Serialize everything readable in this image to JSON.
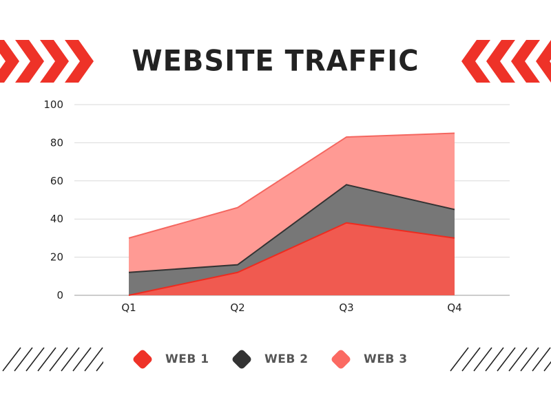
{
  "title": "WEBSITE TRAFFIC",
  "chart_data": {
    "type": "area",
    "stacked": true,
    "categories": [
      "Q1",
      "Q2",
      "Q3",
      "Q4"
    ],
    "series": [
      {
        "name": "WEB 1",
        "values": [
          0,
          12,
          38,
          30
        ],
        "color": "#f05a50",
        "line": "#ee2b1f"
      },
      {
        "name": "WEB 2",
        "values": [
          12,
          4,
          20,
          15
        ],
        "color": "#777777",
        "line": "#333333"
      },
      {
        "name": "WEB 3",
        "values": [
          18,
          30,
          25,
          40
        ],
        "color": "#ff9a94",
        "line": "#f4665f"
      }
    ],
    "yticks": [
      0,
      20,
      40,
      60,
      80,
      100
    ],
    "ylim": [
      0,
      100
    ],
    "grid": true,
    "legend_position": "bottom"
  },
  "legend": [
    {
      "label": "WEB 1",
      "color": "#ee3228"
    },
    {
      "label": "WEB 2",
      "color": "#333333"
    },
    {
      "label": "WEB 3",
      "color": "#fb6a62"
    }
  ],
  "decor": {
    "chevron_color": "#ee3228",
    "hatch_color": "#222222"
  }
}
